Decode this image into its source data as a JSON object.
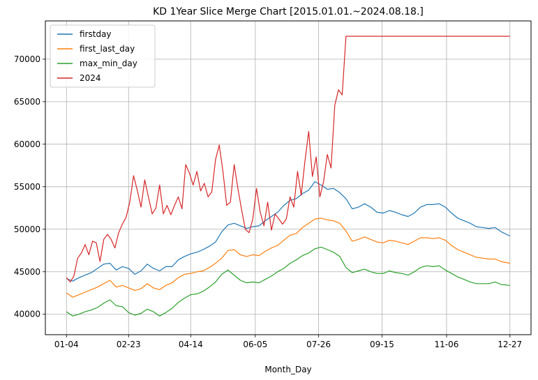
{
  "chart_data": {
    "type": "line",
    "title": "KD 1Year Slice Merge Chart [2015.01.01.~2024.08.18.]",
    "xlabel": "Month_Day",
    "ylabel": "",
    "x_tick_labels": [
      "01-04",
      "02-23",
      "04-14",
      "06-05",
      "07-26",
      "09-15",
      "11-06",
      "12-27"
    ],
    "x_tick_positions": [
      0,
      50,
      100,
      152,
      203,
      254,
      306,
      357
    ],
    "x_range": [
      -17,
      374
    ],
    "ylim": [
      37600,
      74500
    ],
    "y_ticks": [
      40000,
      45000,
      50000,
      55000,
      60000,
      65000,
      70000
    ],
    "grid": true,
    "legend_position": "upper-left",
    "series": [
      {
        "name": "firstday",
        "color": "#1f77b4",
        "x": [
          0,
          5,
          10,
          15,
          20,
          25,
          30,
          35,
          40,
          45,
          50,
          55,
          60,
          65,
          70,
          75,
          80,
          85,
          90,
          95,
          100,
          105,
          110,
          115,
          120,
          125,
          130,
          135,
          140,
          145,
          150,
          155,
          160,
          165,
          170,
          175,
          180,
          185,
          190,
          195,
          200,
          205,
          210,
          215,
          220,
          225,
          230,
          235,
          240,
          245,
          250,
          255,
          260,
          265,
          270,
          275,
          280,
          285,
          290,
          295,
          300,
          305,
          310,
          315,
          320,
          325,
          330,
          335,
          340,
          345,
          350,
          357
        ],
        "values": [
          44200,
          43900,
          44300,
          44600,
          44900,
          45400,
          45900,
          46000,
          45200,
          45600,
          45400,
          44700,
          45100,
          45900,
          45400,
          45100,
          45600,
          45600,
          46400,
          46800,
          47100,
          47300,
          47600,
          48000,
          48500,
          49700,
          50500,
          50700,
          50400,
          50100,
          50300,
          50400,
          51000,
          51500,
          52000,
          52800,
          53400,
          53600,
          54200,
          54600,
          55600,
          55200,
          54700,
          54800,
          54300,
          53600,
          52400,
          52600,
          53000,
          52600,
          52000,
          51900,
          52200,
          52000,
          51700,
          51500,
          51900,
          52600,
          52900,
          52900,
          53000,
          52600,
          51900,
          51300,
          51000,
          50700,
          50300,
          50200,
          50100,
          50200,
          49700,
          49200
        ]
      },
      {
        "name": "first_last_day",
        "color": "#ff7f0e",
        "x": [
          0,
          5,
          10,
          15,
          20,
          25,
          30,
          35,
          40,
          45,
          50,
          55,
          60,
          65,
          70,
          75,
          80,
          85,
          90,
          95,
          100,
          105,
          110,
          115,
          120,
          125,
          130,
          135,
          140,
          145,
          150,
          155,
          160,
          165,
          170,
          175,
          180,
          185,
          190,
          195,
          200,
          205,
          210,
          215,
          220,
          225,
          230,
          235,
          240,
          245,
          250,
          255,
          260,
          265,
          270,
          275,
          280,
          285,
          290,
          295,
          300,
          305,
          310,
          315,
          320,
          325,
          330,
          335,
          340,
          345,
          350,
          357
        ],
        "values": [
          42500,
          42000,
          42300,
          42600,
          42900,
          43200,
          43600,
          44000,
          43200,
          43400,
          43100,
          42800,
          43000,
          43600,
          43100,
          42900,
          43400,
          43700,
          44300,
          44700,
          44800,
          45000,
          45100,
          45500,
          46000,
          46600,
          47500,
          47600,
          47000,
          46800,
          47000,
          46900,
          47400,
          47800,
          48100,
          48700,
          49300,
          49500,
          50200,
          50700,
          51200,
          51300,
          51100,
          51000,
          50700,
          49800,
          48600,
          48800,
          49100,
          48800,
          48500,
          48400,
          48700,
          48600,
          48400,
          48200,
          48600,
          49000,
          49000,
          48900,
          49000,
          48700,
          48100,
          47600,
          47300,
          47000,
          46700,
          46600,
          46500,
          46500,
          46200,
          46000
        ]
      },
      {
        "name": "max_min_day",
        "color": "#2ca02c",
        "x": [
          0,
          5,
          10,
          15,
          20,
          25,
          30,
          35,
          40,
          45,
          50,
          55,
          60,
          65,
          70,
          75,
          80,
          85,
          90,
          95,
          100,
          105,
          110,
          115,
          120,
          125,
          130,
          135,
          140,
          145,
          150,
          155,
          160,
          165,
          170,
          175,
          180,
          185,
          190,
          195,
          200,
          205,
          210,
          215,
          220,
          225,
          230,
          235,
          240,
          245,
          250,
          255,
          260,
          265,
          270,
          275,
          280,
          285,
          290,
          295,
          300,
          305,
          310,
          315,
          320,
          325,
          330,
          335,
          340,
          345,
          350,
          357
        ],
        "values": [
          40300,
          39800,
          40000,
          40300,
          40500,
          40800,
          41300,
          41700,
          41000,
          40900,
          40200,
          39900,
          40100,
          40600,
          40300,
          39800,
          40200,
          40700,
          41400,
          41900,
          42300,
          42400,
          42700,
          43200,
          43800,
          44700,
          45200,
          44600,
          44000,
          43700,
          43800,
          43700,
          44100,
          44500,
          45000,
          45400,
          46000,
          46400,
          46900,
          47200,
          47700,
          47900,
          47600,
          47300,
          46800,
          45500,
          44900,
          45100,
          45300,
          45000,
          44800,
          44800,
          45100,
          44900,
          44800,
          44600,
          45000,
          45500,
          45700,
          45600,
          45700,
          45200,
          44800,
          44400,
          44100,
          43800,
          43600,
          43600,
          43600,
          43800,
          43500,
          43400
        ]
      },
      {
        "name": "2024",
        "color": "#d62728",
        "x": [
          0,
          3,
          6,
          9,
          12,
          15,
          18,
          21,
          24,
          27,
          30,
          33,
          36,
          39,
          42,
          45,
          48,
          51,
          54,
          57,
          60,
          63,
          66,
          69,
          72,
          75,
          78,
          81,
          84,
          87,
          90,
          93,
          96,
          99,
          102,
          105,
          108,
          111,
          114,
          117,
          120,
          123,
          126,
          129,
          132,
          135,
          138,
          141,
          144,
          147,
          150,
          153,
          156,
          159,
          162,
          165,
          168,
          171,
          174,
          177,
          180,
          183,
          186,
          189,
          192,
          195,
          198,
          201,
          204,
          207,
          210,
          213,
          216,
          219,
          222,
          225,
          226,
          357
        ],
        "values": [
          44300,
          43800,
          44500,
          46600,
          47200,
          48200,
          47000,
          48600,
          48400,
          46200,
          48800,
          49400,
          48800,
          47800,
          49600,
          50600,
          51400,
          53200,
          56300,
          54600,
          52600,
          55800,
          53800,
          51800,
          52500,
          55200,
          51800,
          52800,
          51700,
          52800,
          53800,
          52400,
          57600,
          56600,
          55200,
          56800,
          54500,
          55400,
          53800,
          54400,
          58200,
          59900,
          56800,
          52800,
          53200,
          57600,
          54800,
          52300,
          50000,
          49600,
          51200,
          54800,
          52000,
          50400,
          53200,
          49900,
          51800,
          51200,
          50600,
          51200,
          53800,
          52600,
          56800,
          54000,
          58000,
          61500,
          56200,
          58500,
          53800,
          55600,
          58800,
          57200,
          64600,
          66400,
          65800,
          72700,
          72700,
          72700
        ]
      }
    ]
  }
}
